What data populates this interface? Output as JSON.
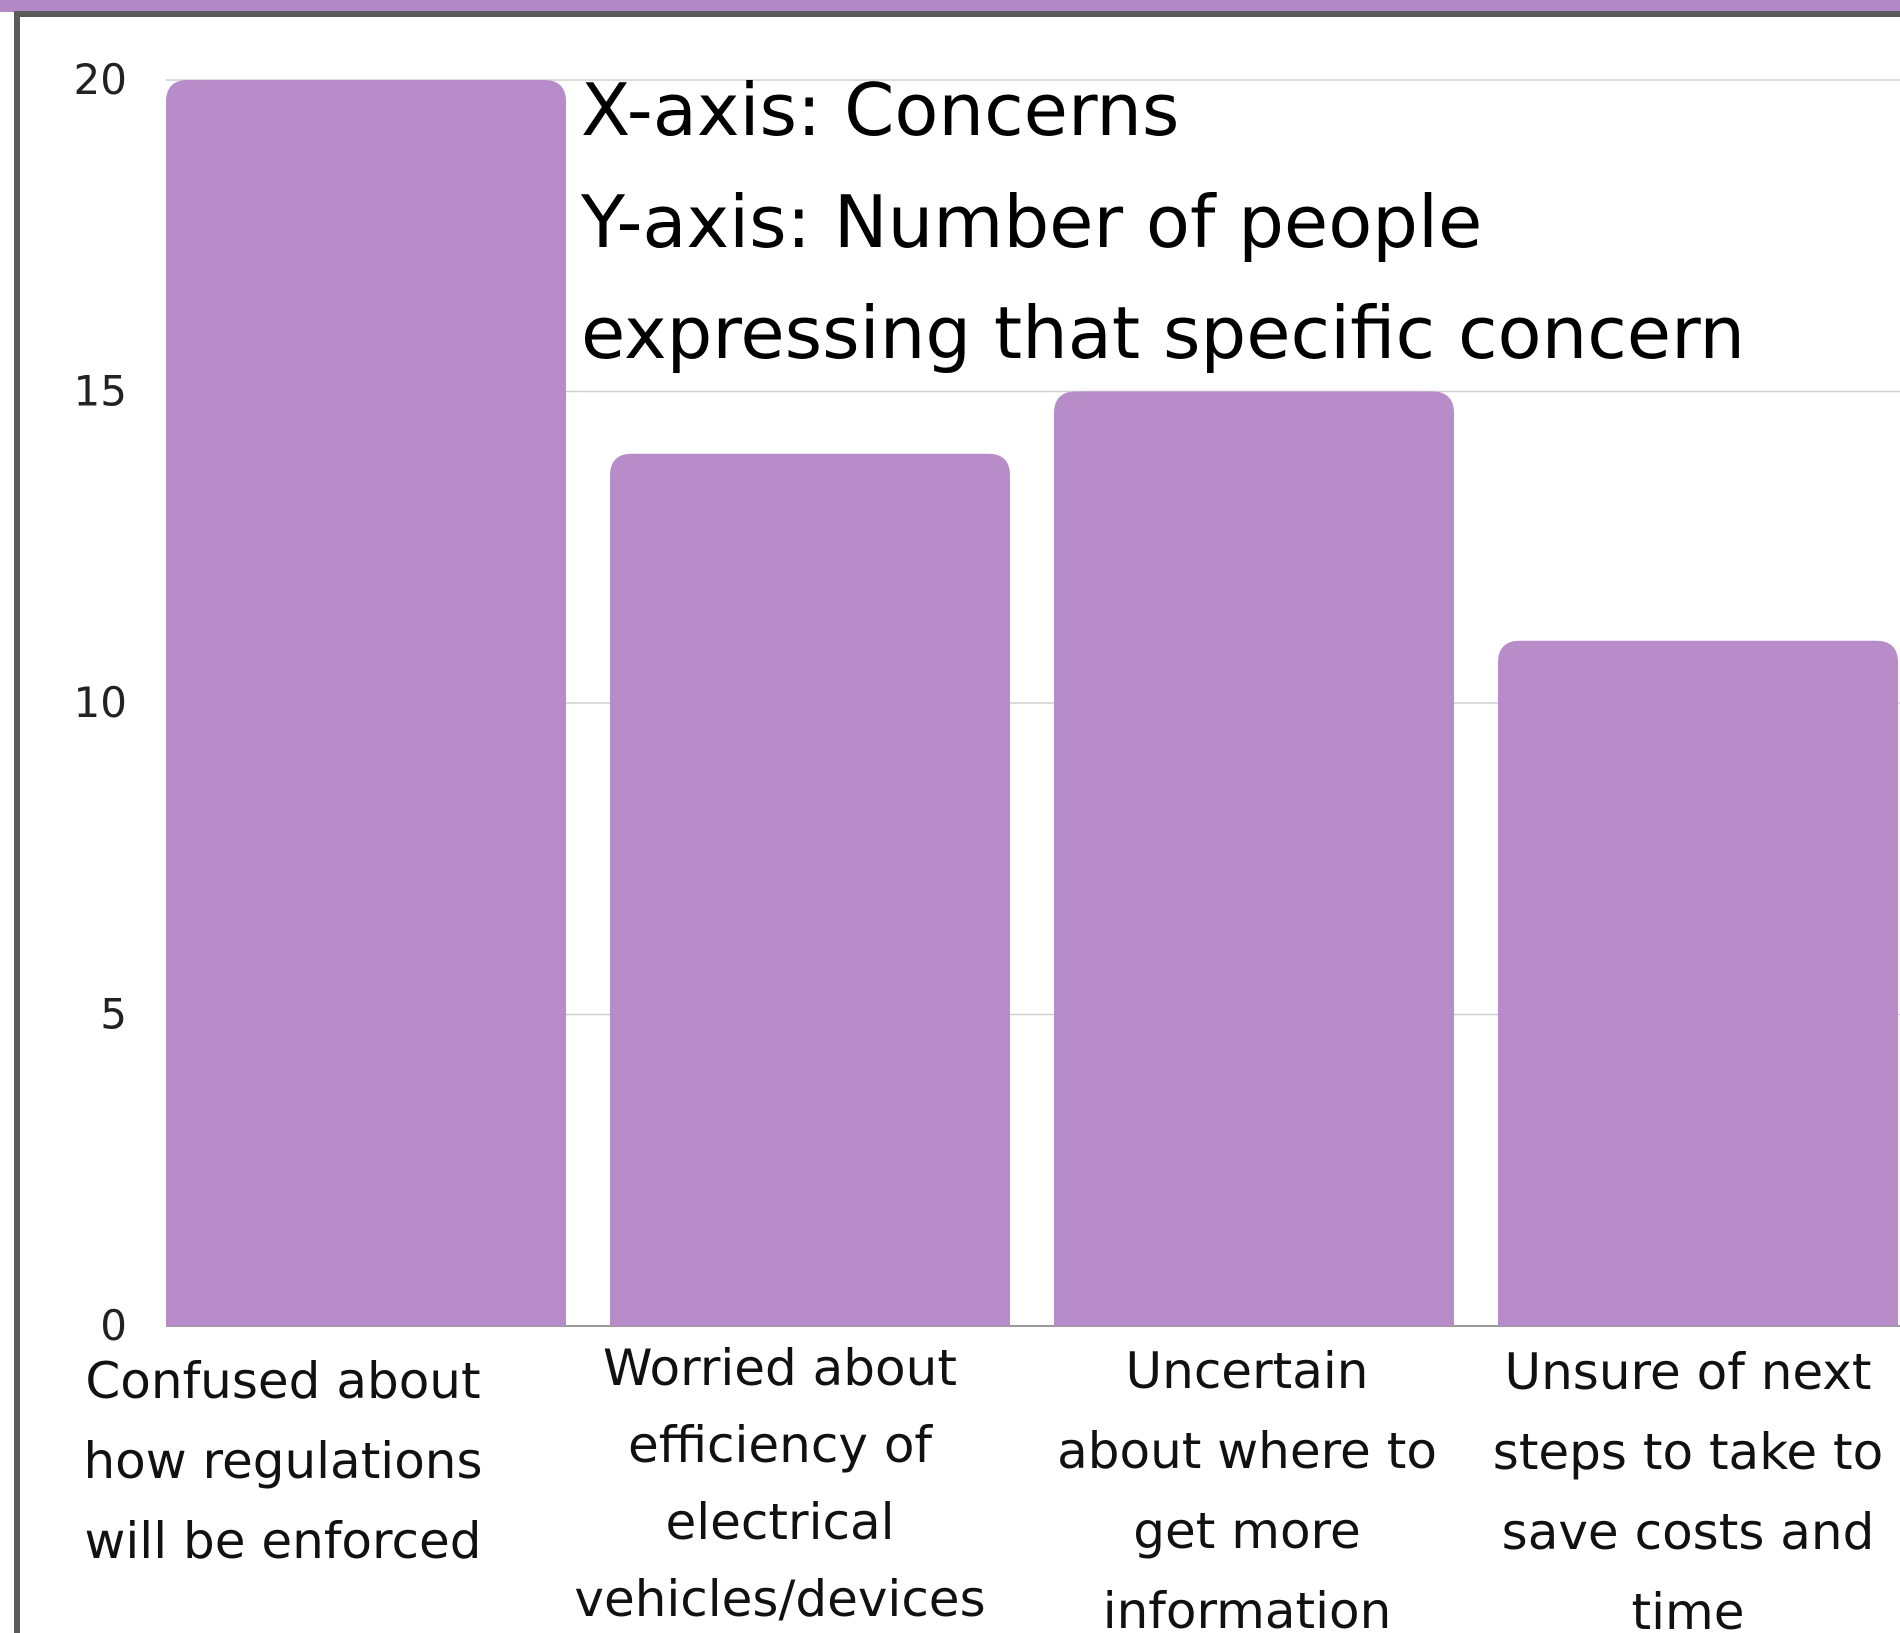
{
  "colors": {
    "bar": "#b88bc9",
    "top_band": "#b48ac6",
    "frame": "#5b5b5b",
    "gridline": "#cfcfcf"
  },
  "chart_data": {
    "type": "bar",
    "categories": [
      "Confused about how regulations will be enforced",
      "Worried about efficiency of electrical vehicles/devices",
      "Uncertain about where to get more information",
      "Unsure of next steps to take to save costs and time"
    ],
    "category_lines": [
      [
        "Confused about",
        "how regulations",
        "will be enforced"
      ],
      [
        "Worried about",
        "efficiency of",
        "electrical",
        "vehicles/devices"
      ],
      [
        "Uncertain",
        "about where to",
        "get more",
        "information"
      ],
      [
        "Unsure of next",
        "steps to take to",
        "save costs and",
        "time"
      ]
    ],
    "values": [
      20,
      14,
      15,
      11
    ],
    "ylim": [
      0,
      20
    ],
    "yticks": [
      0,
      5,
      10,
      15,
      20
    ],
    "grid": true,
    "annotation_lines": [
      "X-axis: Concerns",
      "Y-axis: Number of people",
      "expressing that specific concern"
    ]
  }
}
